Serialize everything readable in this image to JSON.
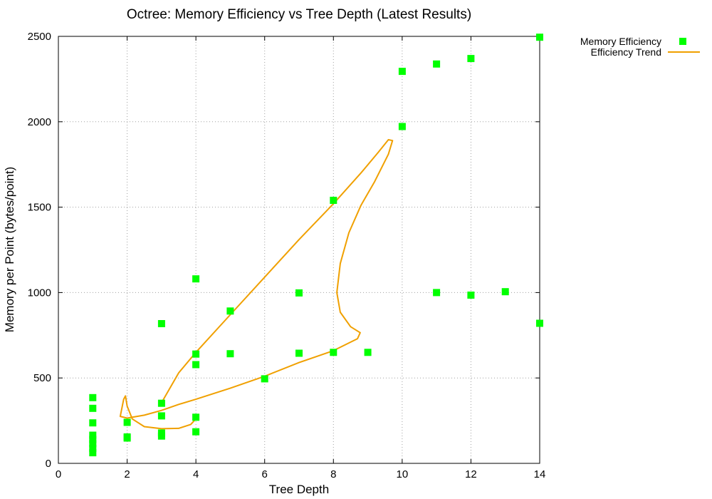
{
  "chart_data": {
    "type": "scatter",
    "title": "Octree: Memory Efficiency vs Tree Depth (Latest Results)",
    "xlabel": "Tree Depth",
    "ylabel": "Memory per Point (bytes/point)",
    "xlim": [
      0,
      14
    ],
    "ylim": [
      0,
      2500
    ],
    "xticks": [
      0,
      2,
      4,
      6,
      8,
      10,
      12,
      14
    ],
    "yticks": [
      0,
      500,
      1000,
      1500,
      2000,
      2500
    ],
    "grid": true,
    "legend_position": "outside-top-right",
    "series": [
      {
        "name": "Memory Efficiency",
        "kind": "points",
        "marker": "square",
        "color": "#00ff00",
        "points": [
          [
            1,
            385
          ],
          [
            1,
            322
          ],
          [
            1,
            237
          ],
          [
            1,
            165
          ],
          [
            1,
            140
          ],
          [
            1,
            115
          ],
          [
            1,
            88
          ],
          [
            1,
            62
          ],
          [
            2,
            240
          ],
          [
            2,
            155
          ],
          [
            2,
            148
          ],
          [
            3,
            818
          ],
          [
            3,
            352
          ],
          [
            3,
            278
          ],
          [
            3,
            178
          ],
          [
            3,
            160
          ],
          [
            4,
            1080
          ],
          [
            4,
            640
          ],
          [
            4,
            578
          ],
          [
            4,
            270
          ],
          [
            4,
            185
          ],
          [
            5,
            892
          ],
          [
            5,
            642
          ],
          [
            6,
            495
          ],
          [
            7,
            998
          ],
          [
            7,
            645
          ],
          [
            8,
            1540
          ],
          [
            8,
            650
          ],
          [
            9,
            650
          ],
          [
            10,
            2295
          ],
          [
            10,
            1972
          ],
          [
            11,
            2338
          ],
          [
            11,
            1000
          ],
          [
            12,
            2370
          ],
          [
            12,
            985
          ],
          [
            13,
            1005
          ],
          [
            14,
            2495
          ],
          [
            14,
            820
          ]
        ]
      },
      {
        "name": "Efficiency Trend",
        "kind": "line",
        "color": "#f0a000",
        "points": [
          [
            3.0,
            355
          ],
          [
            3.5,
            530
          ],
          [
            4.0,
            650
          ],
          [
            5.0,
            870
          ],
          [
            6.0,
            1090
          ],
          [
            7.0,
            1310
          ],
          [
            8.0,
            1520
          ],
          [
            8.8,
            1700
          ],
          [
            9.3,
            1820
          ],
          [
            9.6,
            1895
          ],
          [
            9.72,
            1890
          ],
          [
            9.6,
            1810
          ],
          [
            9.2,
            1650
          ],
          [
            8.8,
            1510
          ],
          [
            8.45,
            1350
          ],
          [
            8.2,
            1170
          ],
          [
            8.1,
            1000
          ],
          [
            8.2,
            885
          ],
          [
            8.5,
            800
          ],
          [
            8.78,
            765
          ],
          [
            8.7,
            730
          ],
          [
            8.0,
            660
          ],
          [
            7.0,
            590
          ],
          [
            6.0,
            510
          ],
          [
            5.0,
            440
          ],
          [
            4.0,
            375
          ],
          [
            3.5,
            345
          ],
          [
            3.0,
            310
          ],
          [
            2.5,
            282
          ],
          [
            2.0,
            265
          ],
          [
            1.8,
            275
          ],
          [
            1.9,
            375
          ],
          [
            1.95,
            395
          ],
          [
            2.0,
            335
          ],
          [
            2.15,
            260
          ],
          [
            2.5,
            215
          ],
          [
            3.0,
            203
          ],
          [
            3.5,
            205
          ],
          [
            3.85,
            228
          ],
          [
            4.0,
            260
          ]
        ]
      }
    ]
  }
}
